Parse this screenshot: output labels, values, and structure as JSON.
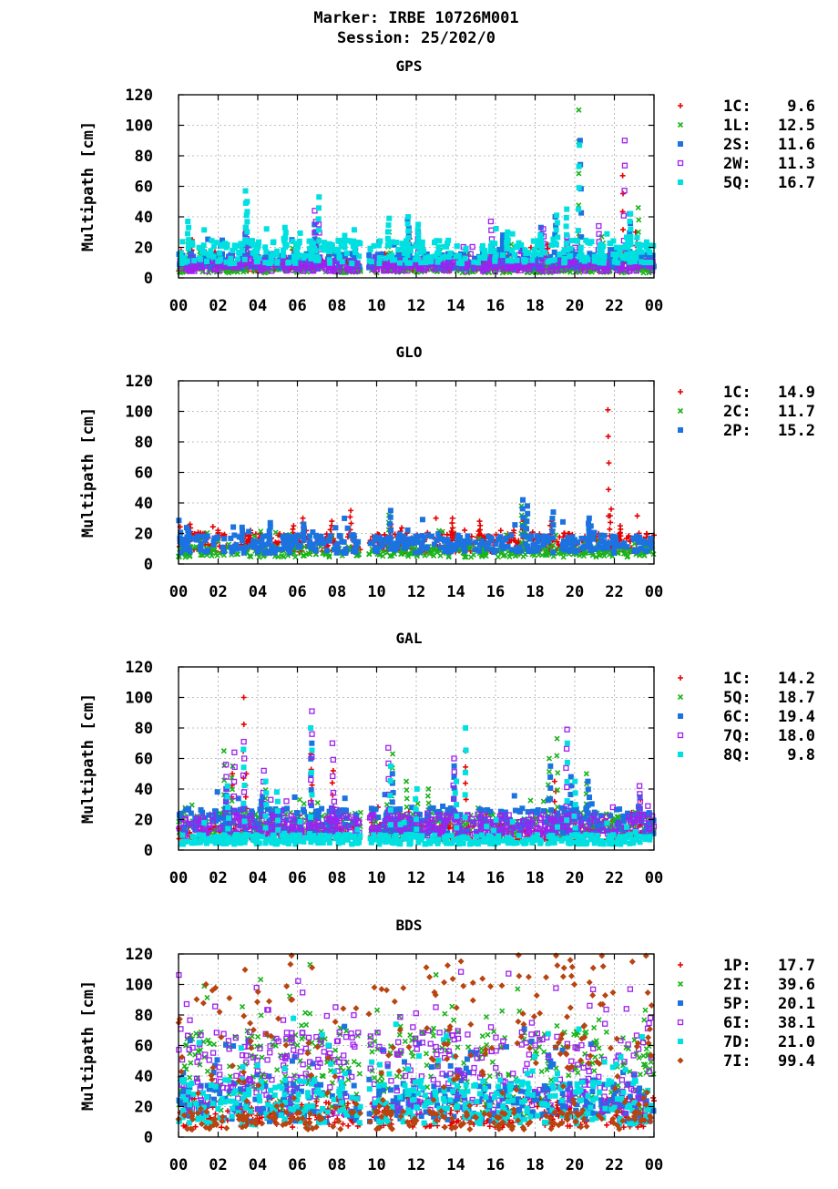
{
  "header": {
    "line1": "Marker: IRBE 10726M001",
    "line2": "Session: 25/202/0"
  },
  "colors": {
    "1C": "#e60000",
    "1L": "#1ab31a",
    "2C": "#1ab31a",
    "2S": "#1c73e0",
    "2P": "#1c73e0",
    "6C": "#1c73e0",
    "2W": "#a020f0",
    "7Q": "#a020f0",
    "5Q": "#00e0e0",
    "8Q": "#00e0e0",
    "1P": "#e60000",
    "2I": "#1ab31a",
    "5P": "#1c73e0",
    "6I": "#a020f0",
    "7D": "#00e0e0",
    "7I": "#b84410"
  },
  "chart_data": [
    {
      "type": "scatter",
      "title": "GPS",
      "ylabel": "Multipath [cm]",
      "ylim": [
        0,
        120
      ],
      "yticks": [
        "0",
        "20",
        "40",
        "60",
        "80",
        "100",
        "120"
      ],
      "xticks": [
        "00",
        "02",
        "04",
        "06",
        "08",
        "10",
        "12",
        "14",
        "16",
        "18",
        "20",
        "22",
        "00"
      ],
      "xlim_hours": [
        0,
        24
      ],
      "grid": true,
      "legend_placement": "right",
      "series": [
        {
          "name": "1C:",
          "value": "9.6",
          "marker": "plus",
          "color": "#e60000",
          "base": 8,
          "spikes": [
            [
              0.7,
              25
            ],
            [
              3.4,
              22
            ],
            [
              6.9,
              30
            ],
            [
              11.7,
              30
            ],
            [
              16.6,
              25
            ],
            [
              18.6,
              22
            ],
            [
              20.2,
              30
            ],
            [
              22.4,
              67
            ],
            [
              23.1,
              30
            ]
          ]
        },
        {
          "name": "1L:",
          "value": "12.5",
          "marker": "cross",
          "color": "#1ab31a",
          "base": 6,
          "spikes": [
            [
              0.5,
              24
            ],
            [
              1.1,
              20
            ],
            [
              3.4,
              30
            ],
            [
              7.0,
              25
            ],
            [
              10.6,
              30
            ],
            [
              13.2,
              20
            ],
            [
              16.8,
              22
            ],
            [
              20.2,
              110
            ],
            [
              21.4,
              27
            ],
            [
              23.2,
              46
            ]
          ]
        },
        {
          "name": "2S:",
          "value": "11.6",
          "marker": "square",
          "color": "#1c73e0",
          "base": 11,
          "spikes": [
            [
              3.4,
              33
            ],
            [
              6.9,
              35
            ],
            [
              11.6,
              38
            ],
            [
              16.4,
              28
            ],
            [
              18.3,
              33
            ],
            [
              19.0,
              40
            ],
            [
              20.3,
              90
            ],
            [
              22.8,
              42
            ]
          ]
        },
        {
          "name": "2W:",
          "value": "11.3",
          "marker": "opensquare",
          "color": "#a020f0",
          "base": 8,
          "spikes": [
            [
              3.4,
              30
            ],
            [
              6.9,
              44
            ],
            [
              7.1,
              35
            ],
            [
              12.1,
              30
            ],
            [
              15.8,
              37
            ],
            [
              18.4,
              32
            ],
            [
              19.6,
              27
            ],
            [
              21.2,
              34
            ],
            [
              22.5,
              90
            ]
          ]
        },
        {
          "name": "5Q:",
          "value": "16.7",
          "marker": "square",
          "color": "#00e0e0",
          "base": 17,
          "spikes": [
            [
              0.5,
              37
            ],
            [
              3.4,
              57
            ],
            [
              3.5,
              50
            ],
            [
              5.4,
              33
            ],
            [
              7.1,
              53
            ],
            [
              10.6,
              39
            ],
            [
              11.6,
              40
            ],
            [
              12.1,
              35
            ],
            [
              16.6,
              30
            ],
            [
              18.3,
              28
            ],
            [
              19.1,
              41
            ],
            [
              19.6,
              45
            ],
            [
              20.2,
              87
            ],
            [
              22.8,
              42
            ]
          ]
        }
      ]
    },
    {
      "type": "scatter",
      "title": "GLO",
      "ylabel": "Multipath [cm]",
      "ylim": [
        0,
        120
      ],
      "yticks": [
        "0",
        "20",
        "40",
        "60",
        "80",
        "100",
        "120"
      ],
      "xticks": [
        "00",
        "02",
        "04",
        "06",
        "08",
        "10",
        "12",
        "14",
        "16",
        "18",
        "20",
        "22",
        "00"
      ],
      "xlim_hours": [
        0,
        24
      ],
      "grid": true,
      "legend_placement": "right",
      "series": [
        {
          "name": "1C:",
          "value": "14.9",
          "marker": "plus",
          "color": "#e60000",
          "base": 14,
          "spikes": [
            [
              0.6,
              26
            ],
            [
              2.0,
              22
            ],
            [
              3.6,
              22
            ],
            [
              5.8,
              25
            ],
            [
              6.3,
              30
            ],
            [
              7.7,
              28
            ],
            [
              8.7,
              35
            ],
            [
              10.7,
              26
            ],
            [
              13.8,
              30
            ],
            [
              15.2,
              28
            ],
            [
              16.9,
              22
            ],
            [
              17.4,
              28
            ],
            [
              18.8,
              28
            ],
            [
              21.7,
              101
            ],
            [
              21.8,
              36
            ],
            [
              22.3,
              25
            ]
          ]
        },
        {
          "name": "2C:",
          "value": "11.7",
          "marker": "cross",
          "color": "#1ab31a",
          "base": 8,
          "spikes": [
            [
              10.6,
              32
            ],
            [
              17.3,
              38
            ],
            [
              17.5,
              30
            ],
            [
              18.9,
              30
            ]
          ]
        },
        {
          "name": "2P:",
          "value": "15.2",
          "marker": "square",
          "color": "#1c73e0",
          "base": 13,
          "spikes": [
            [
              0.5,
              22
            ],
            [
              3.2,
              24
            ],
            [
              4.6,
              27
            ],
            [
              6.3,
              26
            ],
            [
              10.7,
              35
            ],
            [
              17.4,
              42
            ],
            [
              17.6,
              38
            ],
            [
              18.9,
              34
            ],
            [
              20.7,
              30
            ]
          ]
        }
      ]
    },
    {
      "type": "scatter",
      "title": "GAL",
      "ylabel": "Multipath [cm]",
      "ylim": [
        0,
        120
      ],
      "yticks": [
        "0",
        "20",
        "40",
        "60",
        "80",
        "100",
        "120"
      ],
      "xticks": [
        "00",
        "02",
        "04",
        "06",
        "08",
        "10",
        "12",
        "14",
        "16",
        "18",
        "20",
        "22",
        "00"
      ],
      "xlim_hours": [
        0,
        24
      ],
      "grid": true,
      "legend_placement": "right",
      "series": [
        {
          "name": "1C:",
          "value": "14.2",
          "marker": "plus",
          "color": "#e60000",
          "base": 12,
          "spikes": [
            [
              2.7,
              50
            ],
            [
              3.3,
              100
            ],
            [
              3.4,
              50
            ],
            [
              6.7,
              63
            ],
            [
              7.8,
              52
            ],
            [
              14.5,
              65
            ],
            [
              19.0,
              45
            ],
            [
              23.3,
              33
            ]
          ]
        },
        {
          "name": "5Q:",
          "value": "18.7",
          "marker": "cross",
          "color": "#1ab31a",
          "base": 17,
          "spikes": [
            [
              2.3,
              65
            ],
            [
              2.7,
              55
            ],
            [
              4.4,
              45
            ],
            [
              10.8,
              63
            ],
            [
              11.5,
              45
            ],
            [
              12.6,
              40
            ],
            [
              18.7,
              60
            ],
            [
              19.1,
              73
            ],
            [
              20.6,
              50
            ]
          ]
        },
        {
          "name": "6C:",
          "value": "19.4",
          "marker": "square",
          "color": "#1c73e0",
          "base": 19,
          "spikes": [
            [
              2.4,
              40
            ],
            [
              4.2,
              35
            ],
            [
              6.7,
              70
            ],
            [
              10.8,
              50
            ],
            [
              13.9,
              55
            ],
            [
              18.8,
              55
            ],
            [
              19.8,
              48
            ],
            [
              20.7,
              45
            ]
          ]
        },
        {
          "name": "7Q:",
          "value": "18.0",
          "marker": "opensquare",
          "color": "#a020f0",
          "base": 16,
          "spikes": [
            [
              2.4,
              56
            ],
            [
              2.8,
              64
            ],
            [
              3.3,
              71
            ],
            [
              4.3,
              52
            ],
            [
              6.7,
              91
            ],
            [
              7.8,
              70
            ],
            [
              10.6,
              67
            ],
            [
              13.9,
              60
            ],
            [
              19.6,
              79
            ],
            [
              23.3,
              42
            ]
          ]
        },
        {
          "name": "8Q:",
          "value": "9.8",
          "marker": "square",
          "color": "#00e0e0",
          "base": 7,
          "spikes": [
            [
              2.5,
              42
            ],
            [
              3.3,
              66
            ],
            [
              4.4,
              45
            ],
            [
              5.0,
              38
            ],
            [
              6.7,
              80
            ],
            [
              10.7,
              55
            ],
            [
              12.0,
              40
            ],
            [
              14.0,
              45
            ],
            [
              14.5,
              80
            ],
            [
              19.6,
              70
            ],
            [
              20.0,
              45
            ]
          ]
        }
      ]
    },
    {
      "type": "scatter",
      "title": "BDS",
      "ylabel": "Multipath [cm]",
      "ylim": [
        0,
        120
      ],
      "yticks": [
        "0",
        "20",
        "40",
        "60",
        "80",
        "100",
        "120"
      ],
      "xticks": [
        "00",
        "02",
        "04",
        "06",
        "08",
        "10",
        "12",
        "14",
        "16",
        "18",
        "20",
        "22",
        "00"
      ],
      "xlim_hours": [
        0,
        24
      ],
      "grid": true,
      "legend_placement": "right",
      "series": [
        {
          "name": "1P:",
          "value": "17.7",
          "marker": "plus",
          "color": "#e60000",
          "base": 14,
          "spikes": []
        },
        {
          "name": "2I:",
          "value": "39.6",
          "marker": "cross",
          "color": "#1ab31a",
          "base": 40,
          "spikes": []
        },
        {
          "name": "5P:",
          "value": "20.1",
          "marker": "square",
          "color": "#1c73e0",
          "base": 20,
          "spikes": []
        },
        {
          "name": "6I:",
          "value": "38.1",
          "marker": "opensquare",
          "color": "#a020f0",
          "base": 38,
          "spikes": []
        },
        {
          "name": "7D:",
          "value": "21.0",
          "marker": "square",
          "color": "#00e0e0",
          "base": 20,
          "spikes": []
        },
        {
          "name": "7I:",
          "value": "99.4",
          "marker": "diamond",
          "color": "#b84410",
          "base": 20,
          "spikes": []
        }
      ]
    }
  ]
}
